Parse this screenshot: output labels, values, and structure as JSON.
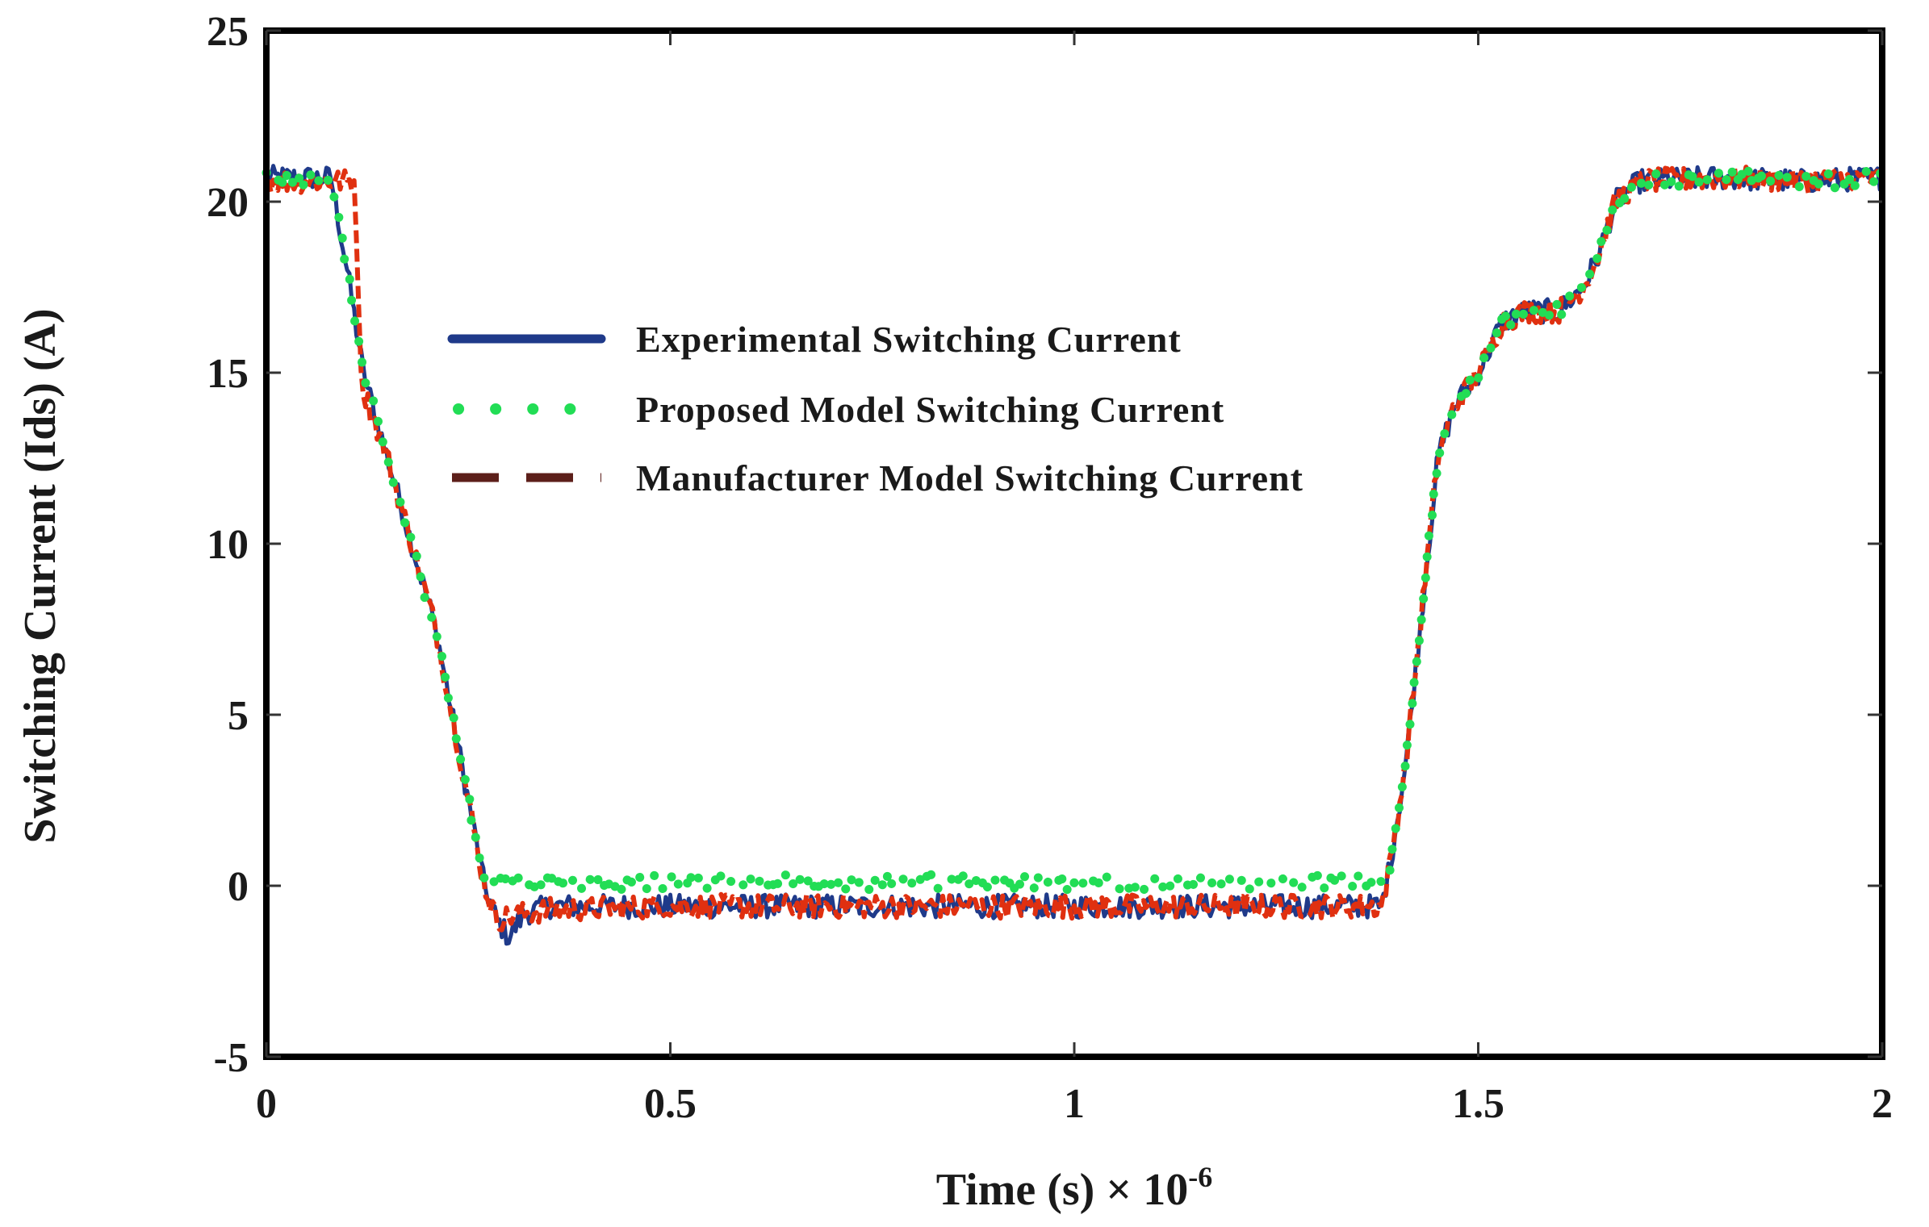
{
  "chart_data": {
    "type": "line",
    "title": "",
    "xlabel": "Time (s) × 10",
    "xlabel_exponent": "-6",
    "ylabel": "Switching Current (Ids) (A)",
    "xlim": [
      0,
      2
    ],
    "ylim": [
      -5,
      25
    ],
    "xticks": [
      0,
      0.5,
      1,
      1.5,
      2
    ],
    "xtick_labels": [
      "0",
      "0.5",
      "1",
      "1.5",
      "2"
    ],
    "yticks": [
      -5,
      0,
      5,
      10,
      15,
      20,
      25
    ],
    "ytick_labels": [
      "-5",
      "0",
      "5",
      "10",
      "15",
      "20",
      "25"
    ],
    "grid": false,
    "legend_position": "upper-middle",
    "series": [
      {
        "name": "Experimental Switching Current",
        "color": "#1f3a8a",
        "style": "solid",
        "noise": 0.35,
        "x": [
          0,
          0.08,
          0.1,
          0.12,
          0.15,
          0.18,
          0.21,
          0.23,
          0.25,
          0.27,
          0.285,
          0.3,
          0.32,
          0.35,
          0.5,
          0.7,
          0.9,
          1.1,
          1.3,
          1.38,
          1.39,
          1.41,
          1.43,
          1.45,
          1.47,
          1.5,
          1.53,
          1.56,
          1.6,
          1.63,
          1.65,
          1.67,
          1.7,
          1.8,
          1.9,
          2.0
        ],
        "y": [
          20.7,
          20.7,
          18.0,
          15.0,
          12.5,
          10.0,
          7.5,
          5.0,
          2.5,
          0.0,
          -1.0,
          -1.5,
          -0.8,
          -0.6,
          -0.6,
          -0.6,
          -0.6,
          -0.6,
          -0.6,
          -0.6,
          0.5,
          3.5,
          8.0,
          12.5,
          14.0,
          15.0,
          16.5,
          16.8,
          16.8,
          17.5,
          18.5,
          20.0,
          20.6,
          20.7,
          20.6,
          20.7
        ]
      },
      {
        "name": "Proposed Model Switching Current",
        "color": "#22dd55",
        "style": "dotted",
        "noise": 0.25,
        "x": [
          0,
          0.08,
          0.1,
          0.12,
          0.15,
          0.18,
          0.21,
          0.23,
          0.25,
          0.27,
          0.3,
          0.5,
          0.7,
          0.9,
          1.1,
          1.3,
          1.38,
          1.39,
          1.41,
          1.43,
          1.45,
          1.47,
          1.5,
          1.53,
          1.56,
          1.6,
          1.63,
          1.65,
          1.67,
          1.7,
          1.8,
          1.9,
          2.0
        ],
        "y": [
          20.7,
          20.7,
          18.0,
          15.0,
          12.5,
          10.0,
          7.5,
          5.0,
          2.5,
          0.1,
          0.1,
          0.1,
          0.1,
          0.1,
          0.1,
          0.1,
          0.1,
          0.5,
          3.5,
          8.0,
          12.5,
          14.0,
          15.0,
          16.5,
          16.8,
          16.8,
          17.5,
          18.5,
          20.0,
          20.6,
          20.7,
          20.6,
          20.7
        ]
      },
      {
        "name": "Manufacturer Model Switching Current",
        "color": "#e03010",
        "legend_color": "#5c1f1a",
        "style": "dashed",
        "noise": 0.35,
        "x": [
          0,
          0.11,
          0.115,
          0.12,
          0.15,
          0.18,
          0.21,
          0.23,
          0.25,
          0.27,
          0.285,
          0.3,
          0.35,
          0.5,
          0.7,
          0.9,
          1.1,
          1.3,
          1.38,
          1.39,
          1.41,
          1.43,
          1.45,
          1.47,
          1.5,
          1.53,
          1.56,
          1.6,
          1.63,
          1.65,
          1.67,
          1.7,
          1.8,
          1.9,
          2.0
        ],
        "y": [
          20.6,
          20.6,
          16.0,
          14.5,
          12.5,
          10.0,
          7.5,
          5.0,
          2.5,
          0.0,
          -1.0,
          -0.9,
          -0.7,
          -0.6,
          -0.6,
          -0.6,
          -0.6,
          -0.6,
          -0.6,
          0.5,
          3.5,
          8.0,
          12.5,
          14.0,
          15.0,
          16.5,
          16.8,
          16.8,
          17.5,
          18.5,
          20.0,
          20.6,
          20.7,
          20.6,
          20.7
        ]
      }
    ]
  }
}
